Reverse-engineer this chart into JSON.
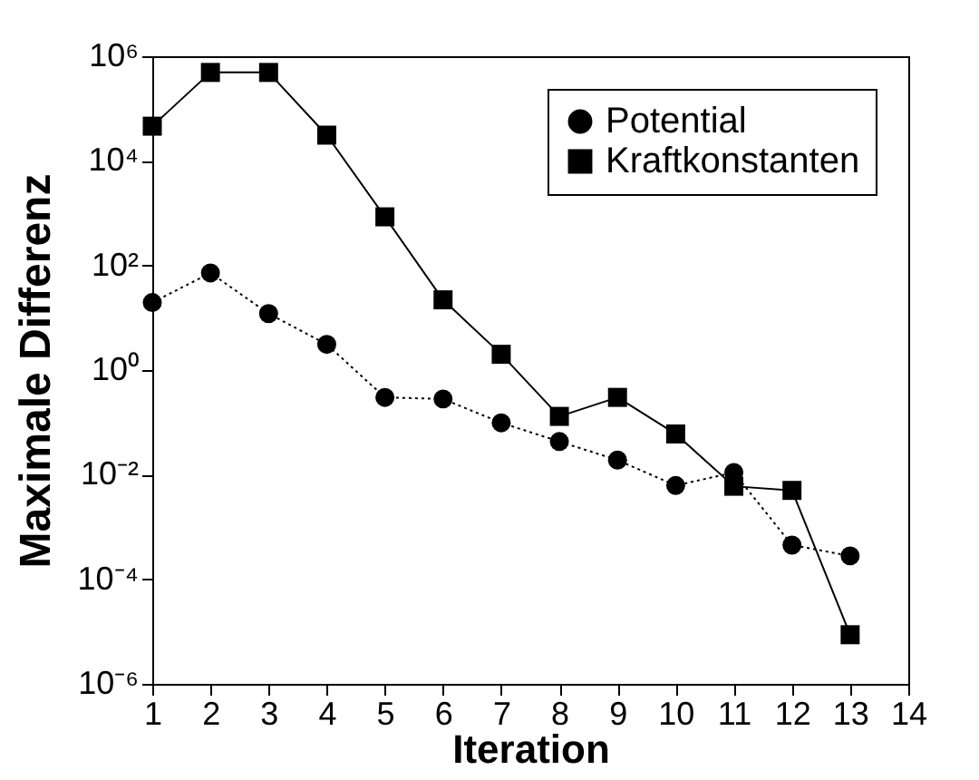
{
  "chart_data": {
    "type": "line",
    "xlabel": "Iteration",
    "ylabel": "Maximale Differenz",
    "log": "y",
    "x": [
      1,
      2,
      3,
      4,
      5,
      6,
      7,
      8,
      9,
      10,
      11,
      12,
      13
    ],
    "xlim": [
      1,
      14
    ],
    "xticks": [
      1,
      2,
      3,
      4,
      5,
      6,
      7,
      8,
      9,
      10,
      11,
      12,
      13,
      14
    ],
    "ylim": [
      1e-06,
      1000000.0
    ],
    "yticks": [
      {
        "value": 1e-06,
        "label": "10⁻⁶"
      },
      {
        "value": 0.0001,
        "label": "10⁻⁴"
      },
      {
        "value": 0.01,
        "label": "10⁻²"
      },
      {
        "value": 1,
        "label": "10⁰"
      },
      {
        "value": 100,
        "label": "10²"
      },
      {
        "value": 10000,
        "label": "10⁴"
      },
      {
        "value": 1000000,
        "label": "10⁶"
      }
    ],
    "grid": false,
    "legend": "top right",
    "series": [
      {
        "name": "Potential",
        "color": "#000000",
        "marker": "circle",
        "line_style": "dotted",
        "values": [
          19.5,
          72,
          12,
          3.1,
          0.3,
          0.28,
          0.098,
          0.043,
          0.019,
          0.0062,
          0.011,
          0.00045,
          0.00028
        ]
      },
      {
        "name": "Kraftkonstanten",
        "color": "#000000",
        "marker": "square",
        "line_style": "solid",
        "values": [
          46000,
          490000,
          490000,
          31000,
          850,
          22,
          2,
          0.13,
          0.3,
          0.06,
          0.006,
          0.005,
          8.7e-06
        ]
      }
    ]
  }
}
